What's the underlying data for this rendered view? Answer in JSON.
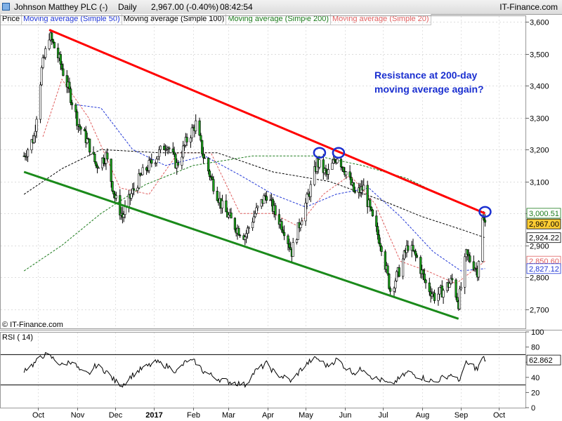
{
  "header": {
    "instrument": "Johnson Matthey PLC (-)",
    "period": "Daily",
    "quote": "2,967.00 (-0.40%)",
    "time": "08:42:54",
    "brand": "IT-Finance.com"
  },
  "legend": [
    {
      "label": "Price",
      "color": "#000000"
    },
    {
      "label": "Moving average (Simple 50)",
      "color": "#1f35d6"
    },
    {
      "label": "Moving average (Simple 100)",
      "color": "#000000"
    },
    {
      "label": "Moving average (Simple 200)",
      "color": "#1a7a1a"
    },
    {
      "label": "Moving average (Simple 20)",
      "color": "#e06060"
    }
  ],
  "watermark": "© IT-Finance.com",
  "annotation": {
    "line1": "Resistance at 200-day",
    "line2": "moving average again?",
    "color": "#1a2fd0"
  },
  "chart_data": [
    {
      "type": "candlestick",
      "ylim": [
        2640,
        3620
      ],
      "y_ticks": [
        2700,
        2800,
        2900,
        3000,
        3100,
        3200,
        3300,
        3400,
        3500,
        3600
      ],
      "y_tick_labels": [
        "2,700",
        "2,800",
        "2,900",
        "3,000",
        "3,100",
        "3,200",
        "3,300",
        "3,400",
        "3,500",
        "3,600"
      ],
      "x_tick_labels": [
        "Oct",
        "Nov",
        "Dec",
        "2017",
        "Feb",
        "Mar",
        "Apr",
        "May",
        "Jun",
        "Jul",
        "Aug",
        "Sep",
        "Oct"
      ],
      "x_tick_dates": [
        "2016-10-01",
        "2016-11-01",
        "2016-12-01",
        "2017-01-01",
        "2017-02-01",
        "2017-03-01",
        "2017-04-01",
        "2017-05-01",
        "2017-06-01",
        "2017-07-01",
        "2017-08-01",
        "2017-09-01",
        "2017-10-01"
      ],
      "grid": true,
      "price_path": [
        [
          "2016-09-20",
          3180
        ],
        [
          "2016-09-28",
          3240
        ],
        [
          "2016-10-04",
          3450
        ],
        [
          "2016-10-10",
          3560
        ],
        [
          "2016-10-18",
          3480
        ],
        [
          "2016-10-26",
          3380
        ],
        [
          "2016-11-02",
          3280
        ],
        [
          "2016-11-10",
          3220
        ],
        [
          "2016-11-16",
          3150
        ],
        [
          "2016-11-24",
          3180
        ],
        [
          "2016-12-01",
          3050
        ],
        [
          "2016-12-07",
          2990
        ],
        [
          "2016-12-14",
          3060
        ],
        [
          "2016-12-22",
          3120
        ],
        [
          "2017-01-03",
          3180
        ],
        [
          "2017-01-11",
          3220
        ],
        [
          "2017-01-19",
          3150
        ],
        [
          "2017-01-27",
          3230
        ],
        [
          "2017-02-03",
          3280
        ],
        [
          "2017-02-09",
          3180
        ],
        [
          "2017-02-16",
          3100
        ],
        [
          "2017-02-24",
          3020
        ],
        [
          "2017-03-06",
          2960
        ],
        [
          "2017-03-14",
          2930
        ],
        [
          "2017-03-22",
          3000
        ],
        [
          "2017-03-31",
          3060
        ],
        [
          "2017-04-07",
          3000
        ],
        [
          "2017-04-14",
          2950
        ],
        [
          "2017-04-20",
          2880
        ],
        [
          "2017-04-27",
          2980
        ],
        [
          "2017-05-05",
          3080
        ],
        [
          "2017-05-10",
          3160
        ],
        [
          "2017-05-18",
          3120
        ],
        [
          "2017-05-26",
          3180
        ],
        [
          "2017-06-02",
          3130
        ],
        [
          "2017-06-09",
          3060
        ],
        [
          "2017-06-16",
          3080
        ],
        [
          "2017-06-23",
          2980
        ],
        [
          "2017-06-30",
          2900
        ],
        [
          "2017-07-07",
          2760
        ],
        [
          "2017-07-14",
          2820
        ],
        [
          "2017-07-21",
          2900
        ],
        [
          "2017-07-28",
          2860
        ],
        [
          "2017-08-04",
          2780
        ],
        [
          "2017-08-11",
          2740
        ],
        [
          "2017-08-18",
          2760
        ],
        [
          "2017-08-25",
          2790
        ],
        [
          "2017-08-30",
          2720
        ],
        [
          "2017-09-05",
          2870
        ],
        [
          "2017-09-11",
          2840
        ],
        [
          "2017-09-14",
          2820
        ],
        [
          "2017-09-18",
          2980
        ],
        [
          "2017-09-20",
          2967
        ]
      ],
      "moving_averages": {
        "Simple 20": [
          [
            "2016-10-05",
            3240
          ],
          [
            "2016-10-20",
            3420
          ],
          [
            "2016-11-10",
            3300
          ],
          [
            "2016-12-05",
            3080
          ],
          [
            "2016-12-28",
            3060
          ],
          [
            "2017-01-20",
            3190
          ],
          [
            "2017-02-15",
            3190
          ],
          [
            "2017-03-10",
            3000
          ],
          [
            "2017-04-05",
            3000
          ],
          [
            "2017-04-25",
            2960
          ],
          [
            "2017-05-15",
            3060
          ],
          [
            "2017-06-05",
            3120
          ],
          [
            "2017-06-25",
            3030
          ],
          [
            "2017-07-15",
            2850
          ],
          [
            "2017-08-05",
            2820
          ],
          [
            "2017-08-28",
            2780
          ],
          [
            "2017-09-20",
            2850.6
          ]
        ],
        "Simple 50": [
          [
            "2016-11-01",
            3340
          ],
          [
            "2016-11-20",
            3330
          ],
          [
            "2016-12-15",
            3200
          ],
          [
            "2017-01-10",
            3150
          ],
          [
            "2017-02-10",
            3180
          ],
          [
            "2017-03-10",
            3120
          ],
          [
            "2017-04-05",
            3060
          ],
          [
            "2017-05-01",
            3020
          ],
          [
            "2017-05-25",
            3060
          ],
          [
            "2017-06-20",
            3080
          ],
          [
            "2017-07-15",
            2990
          ],
          [
            "2017-08-10",
            2880
          ],
          [
            "2017-09-01",
            2820
          ],
          [
            "2017-09-20",
            2827.12
          ]
        ],
        "Simple 100": [
          [
            "2016-09-20",
            3060
          ],
          [
            "2016-10-20",
            3140
          ],
          [
            "2016-11-20",
            3200
          ],
          [
            "2017-01-05",
            3190
          ],
          [
            "2017-02-20",
            3190
          ],
          [
            "2017-04-05",
            3130
          ],
          [
            "2017-05-20",
            3100
          ],
          [
            "2017-07-01",
            3040
          ],
          [
            "2017-08-01",
            2990
          ],
          [
            "2017-09-01",
            2950
          ],
          [
            "2017-09-20",
            2924.22
          ]
        ],
        "Simple 200": [
          [
            "2016-09-20",
            2820
          ],
          [
            "2016-10-20",
            2900
          ],
          [
            "2016-11-20",
            3000
          ],
          [
            "2016-12-25",
            3090
          ],
          [
            "2017-02-01",
            3150
          ],
          [
            "2017-03-20",
            3180
          ],
          [
            "2017-05-10",
            3180
          ],
          [
            "2017-06-15",
            3150
          ],
          [
            "2017-07-20",
            3110
          ],
          [
            "2017-08-20",
            3050
          ],
          [
            "2017-09-20",
            3000.51
          ]
        ]
      },
      "price_labels": [
        {
          "series": "Simple 200",
          "value": 3000.51,
          "text": "3,000.51"
        },
        {
          "series": "Price",
          "value": 2967.0,
          "text": "2,967.00"
        },
        {
          "series": "Simple 100",
          "value": 2924.22,
          "text": "2,924.22"
        },
        {
          "series": "Simple 20",
          "value": 2850.6,
          "text": "2,850.60"
        },
        {
          "series": "Simple 50",
          "value": 2827.12,
          "text": "2,827.12"
        }
      ],
      "trendlines": [
        {
          "color": "#ff0000",
          "from": [
            "2016-10-10",
            3575
          ],
          "to": [
            "2017-09-20",
            3000
          ]
        },
        {
          "color": "#1a8a1a",
          "from": [
            "2016-09-20",
            3130
          ],
          "to": [
            "2017-08-30",
            2670
          ]
        }
      ],
      "circles": [
        {
          "date": "2017-05-12",
          "value": 3190
        },
        {
          "date": "2017-05-27",
          "value": 3190
        },
        {
          "date": "2017-09-20",
          "value": 3005
        }
      ]
    },
    {
      "type": "line",
      "label": "RSI ( 14)",
      "ylim": [
        0,
        100
      ],
      "y_ticks": [
        0,
        20,
        40,
        60,
        80,
        100
      ],
      "y_tick_labels": [
        "0",
        "20",
        "40",
        "60",
        "80",
        "100"
      ],
      "reference_lines": [
        30,
        70
      ],
      "last_value": 62.862,
      "last_value_text": "62.862",
      "values": [
        [
          "2016-09-20",
          50
        ],
        [
          "2016-09-28",
          58
        ],
        [
          "2016-10-06",
          70
        ],
        [
          "2016-10-12",
          66
        ],
        [
          "2016-10-20",
          56
        ],
        [
          "2016-10-28",
          62
        ],
        [
          "2016-11-04",
          47
        ],
        [
          "2016-11-10",
          44
        ],
        [
          "2016-11-16",
          56
        ],
        [
          "2016-11-24",
          48
        ],
        [
          "2016-12-01",
          35
        ],
        [
          "2016-12-07",
          30
        ],
        [
          "2016-12-14",
          42
        ],
        [
          "2016-12-22",
          51
        ],
        [
          "2017-01-03",
          60
        ],
        [
          "2017-01-11",
          55
        ],
        [
          "2017-01-19",
          48
        ],
        [
          "2017-01-27",
          62
        ],
        [
          "2017-02-03",
          60
        ],
        [
          "2017-02-09",
          48
        ],
        [
          "2017-02-16",
          42
        ],
        [
          "2017-02-24",
          36
        ],
        [
          "2017-03-06",
          33
        ],
        [
          "2017-03-14",
          30
        ],
        [
          "2017-03-22",
          48
        ],
        [
          "2017-03-31",
          58
        ],
        [
          "2017-04-07",
          45
        ],
        [
          "2017-04-14",
          40
        ],
        [
          "2017-04-20",
          35
        ],
        [
          "2017-04-27",
          50
        ],
        [
          "2017-05-05",
          62
        ],
        [
          "2017-05-10",
          65
        ],
        [
          "2017-05-18",
          55
        ],
        [
          "2017-05-26",
          64
        ],
        [
          "2017-06-02",
          52
        ],
        [
          "2017-06-09",
          46
        ],
        [
          "2017-06-16",
          52
        ],
        [
          "2017-06-23",
          40
        ],
        [
          "2017-06-30",
          36
        ],
        [
          "2017-07-07",
          30
        ],
        [
          "2017-07-14",
          38
        ],
        [
          "2017-07-21",
          47
        ],
        [
          "2017-07-28",
          42
        ],
        [
          "2017-08-04",
          38
        ],
        [
          "2017-08-11",
          34
        ],
        [
          "2017-08-18",
          40
        ],
        [
          "2017-08-25",
          44
        ],
        [
          "2017-08-30",
          35
        ],
        [
          "2017-09-05",
          58
        ],
        [
          "2017-09-11",
          55
        ],
        [
          "2017-09-14",
          50
        ],
        [
          "2017-09-18",
          66
        ],
        [
          "2017-09-20",
          62.862
        ]
      ]
    }
  ]
}
